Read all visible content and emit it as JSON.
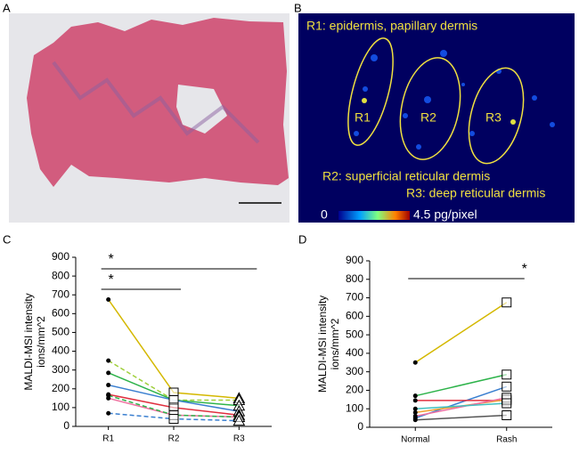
{
  "image_panels": [
    {
      "label": "A"
    },
    {
      "label": "B",
      "captions": [
        "R1: epidermis, papillary dermis",
        "R2: superficial reticular dermis",
        "R3: deep reticular dermis"
      ],
      "regions": [
        "R1",
        "R2",
        "R3"
      ],
      "colorbar": [
        "0",
        "4.5 pg/pixel"
      ]
    }
  ],
  "chart_data": [
    {
      "type": "line",
      "panel_label": "C",
      "ylabel": [
        "MALDI-MSI intensity",
        "ions/mm^2"
      ],
      "categories": [
        "R1",
        "R2",
        "R3"
      ],
      "markers": [
        "circle",
        "square",
        "triangle"
      ],
      "ylim": [
        0,
        900
      ],
      "yticks": [
        0,
        100,
        200,
        300,
        400,
        500,
        600,
        700,
        800,
        900
      ],
      "significance": [
        "*",
        "*"
      ],
      "series": [
        {
          "color": "#d4b800",
          "dashed": false,
          "values": [
            675,
            180,
            150
          ]
        },
        {
          "color": "#9fcf3a",
          "dashed": true,
          "values": [
            350,
            140,
            140
          ]
        },
        {
          "color": "#2db34a",
          "dashed": false,
          "values": [
            285,
            140,
            110
          ]
        },
        {
          "color": "#3a7fd0",
          "dashed": false,
          "values": [
            220,
            140,
            80
          ]
        },
        {
          "color": "#e03040",
          "dashed": false,
          "values": [
            170,
            100,
            60
          ]
        },
        {
          "color": "#f070a0",
          "dashed": false,
          "values": [
            150,
            60,
            50
          ]
        },
        {
          "color": "#2db34a",
          "dashed": true,
          "values": [
            165,
            60,
            50
          ]
        },
        {
          "color": "#3a7fd0",
          "dashed": true,
          "values": [
            70,
            40,
            30
          ]
        }
      ]
    },
    {
      "type": "line",
      "panel_label": "D",
      "ylabel": [
        "MALDI-MSI intensity",
        "ions/mm^2"
      ],
      "categories": [
        "Normal",
        "Rash"
      ],
      "markers": [
        "circle",
        "square"
      ],
      "ylim": [
        0,
        900
      ],
      "yticks": [
        0,
        100,
        200,
        300,
        400,
        500,
        600,
        700,
        800,
        900
      ],
      "significance": [
        "*"
      ],
      "series": [
        {
          "color": "#d4b800",
          "dashed": false,
          "values": [
            350,
            675
          ]
        },
        {
          "color": "#2db34a",
          "dashed": false,
          "values": [
            170,
            285
          ]
        },
        {
          "color": "#3a7fd0",
          "dashed": false,
          "values": [
            50,
            220
          ]
        },
        {
          "color": "#e03040",
          "dashed": false,
          "values": [
            145,
            145
          ]
        },
        {
          "color": "#f0a030",
          "dashed": false,
          "values": [
            80,
            150
          ]
        },
        {
          "color": "#f070a0",
          "dashed": false,
          "values": [
            60,
            160
          ]
        },
        {
          "color": "#40c0c0",
          "dashed": false,
          "values": [
            100,
            130
          ]
        },
        {
          "color": "#555555",
          "dashed": false,
          "values": [
            40,
            65
          ]
        }
      ]
    }
  ]
}
